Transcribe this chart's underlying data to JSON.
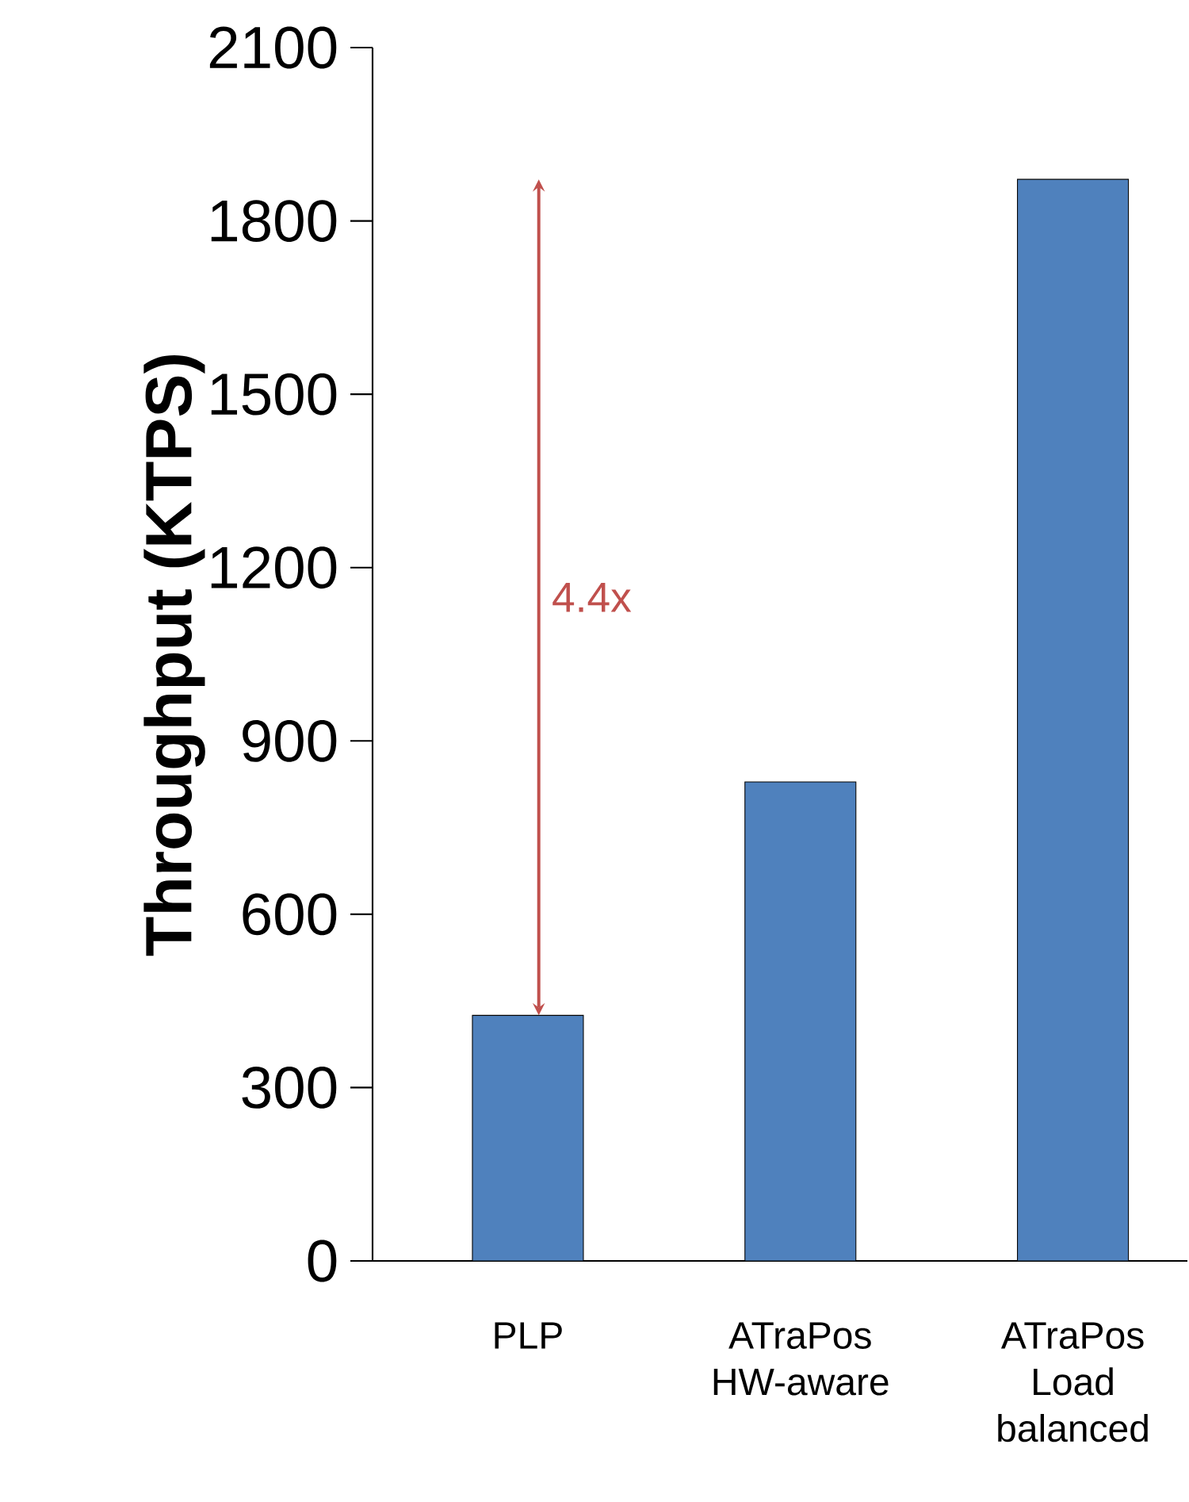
{
  "chart_data": {
    "type": "bar",
    "ylabel": "Throughput (KTPS)",
    "categories": [
      "PLP",
      "ATraPos HW-aware",
      "ATraPos Load balanced"
    ],
    "values": [
      425,
      829,
      1872
    ],
    "color": "#4f81bd",
    "ylim": [
      0,
      2100
    ],
    "yticks": [
      0,
      300,
      600,
      900,
      1200,
      1500,
      1800,
      2100
    ],
    "annotations": [
      "4.4x"
    ]
  }
}
